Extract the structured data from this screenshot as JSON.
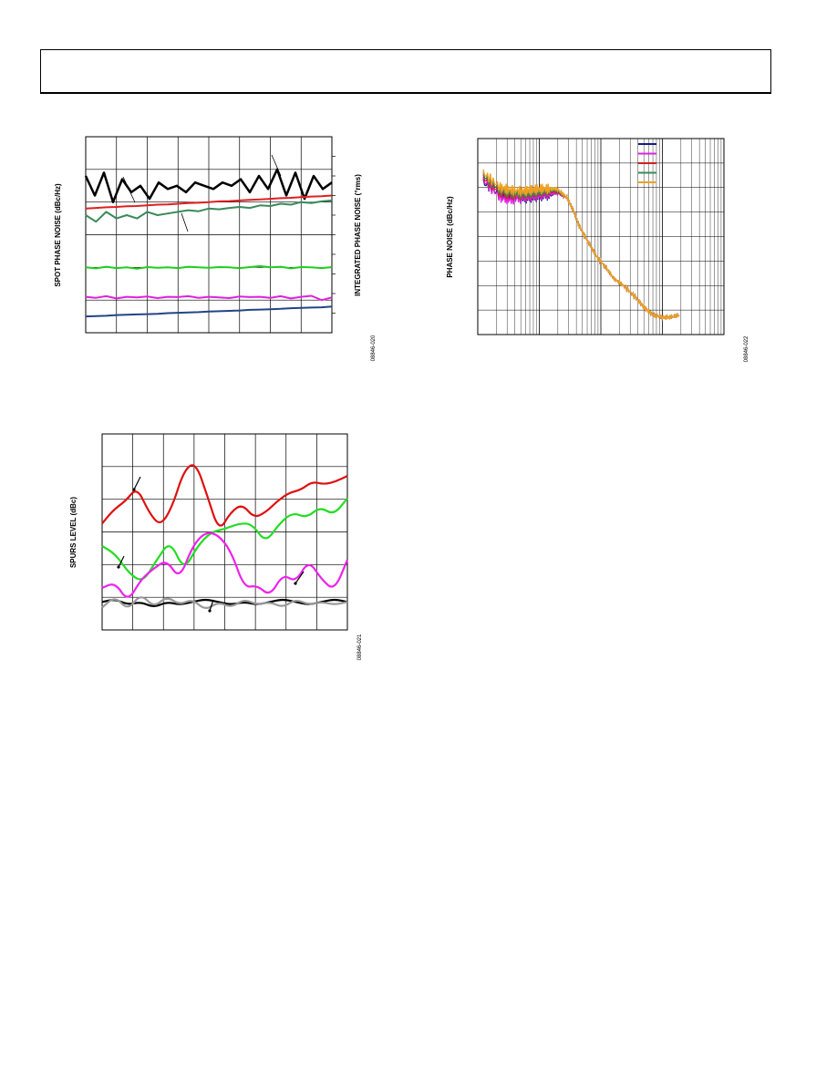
{
  "header": {},
  "chart_data": [
    {
      "type": "line",
      "ylabel": "SPOT PHASE NOISE (dBc/Hz)",
      "y2label": "INTEGRATED PHASE NOISE (°rms)",
      "figure_code": "08846-020",
      "grid": true,
      "series": [
        {
          "color": "#000000",
          "values": [
            -52,
            -58,
            -51,
            -60,
            -53,
            -57,
            -55,
            -59,
            -54,
            -56,
            -55,
            -57,
            -54,
            -55,
            -56,
            -54,
            -55,
            -53,
            -57,
            -52,
            -56,
            -50,
            -58,
            -51,
            -59,
            -52,
            -56,
            -54
          ]
        },
        {
          "color": "#e02020",
          "values": [
            -62,
            -61.8,
            -61.6,
            -61.5,
            -61.3,
            -61.2,
            -61,
            -60.8,
            -60.7,
            -60.5,
            -60.3,
            -60.2,
            -60,
            -59.8,
            -59.7,
            -59.5,
            -59.3,
            -59.2,
            -59,
            -58.8,
            -58.7,
            -58.5,
            -58.3,
            -58.2,
            -58
          ]
        },
        {
          "color": "#3a8a5a",
          "values": [
            -64,
            -66,
            -63,
            -65,
            -64,
            -65,
            -63,
            -64,
            -63.5,
            -63,
            -62.5,
            -62.8,
            -62,
            -62.2,
            -61.8,
            -61.5,
            -61.8,
            -61,
            -61.2,
            -60.5,
            -60.8,
            -60,
            -60.3,
            -59.8,
            -59.5
          ]
        },
        {
          "color": "#22cc22",
          "values": [
            -80,
            -80.3,
            -79.8,
            -80.2,
            -80,
            -80.4,
            -79.9,
            -80.1,
            -80,
            -80.2,
            -79.8,
            -80,
            -80.1,
            -79.9,
            -80,
            -80.2,
            -79.9,
            -79.6,
            -80,
            -79.8,
            -80.3,
            -79.9,
            -80,
            -80.2,
            -79.9
          ]
        },
        {
          "color": "#dd22dd",
          "values": [
            -89,
            -89.3,
            -88.8,
            -89.5,
            -89,
            -89.2,
            -88.9,
            -89.4,
            -89,
            -89.1,
            -88.8,
            -89.3,
            -89,
            -89.2,
            -89.4,
            -88.9,
            -89.1,
            -89,
            -89.3,
            -88.8,
            -89.5,
            -89,
            -88.7,
            -90,
            -89.2
          ]
        },
        {
          "color": "#224488",
          "values": [
            -95,
            -94.9,
            -94.8,
            -94.6,
            -94.5,
            -94.4,
            -94.3,
            -94.2,
            -94,
            -93.9,
            -93.8,
            -93.7,
            -93.5,
            -93.4,
            -93.3,
            -93.2,
            -93,
            -92.9,
            -92.8,
            -92.7,
            -92.5,
            -92.4,
            -92.3,
            -92.2,
            -92
          ]
        }
      ]
    },
    {
      "type": "line",
      "ylabel": "PHASE NOISE (dBc/Hz)",
      "figure_code": "08846-022",
      "x_scale": "log",
      "grid": true,
      "legend_position": "top-right",
      "legend_colors": [
        "#1a1a7a",
        "#e020e0",
        "#d02020",
        "#3a8a5a",
        "#f0a020"
      ],
      "series": [
        {
          "color": "#1a1a7a",
          "x": [
            1,
            2,
            3,
            5,
            7,
            10,
            15,
            20,
            30,
            40,
            50,
            70,
            100,
            150,
            200,
            300,
            500,
            700,
            1000,
            1500,
            2000,
            3000
          ],
          "values": [
            -98,
            -103,
            -104,
            -104.5,
            -104,
            -103.5,
            -103,
            -102,
            -104,
            -110,
            -116,
            -122,
            -128,
            -133,
            -137,
            -140,
            -145,
            -149,
            -152,
            -153,
            -153,
            -152
          ]
        },
        {
          "color": "#e020e0",
          "x": [
            1,
            2,
            3,
            5,
            7,
            10,
            15,
            20,
            30,
            40,
            50,
            70,
            100,
            150,
            200,
            300,
            500,
            700,
            1000,
            1500,
            2000,
            3000
          ],
          "values": [
            -97,
            -104,
            -105,
            -104,
            -103.5,
            -103,
            -102.5,
            -102,
            -104,
            -110,
            -116,
            -122,
            -128,
            -133,
            -137,
            -140,
            -145,
            -149,
            -152,
            -153,
            -153,
            -152
          ]
        },
        {
          "color": "#d02020",
          "x": [
            1,
            2,
            3,
            5,
            7,
            10,
            15,
            20,
            30,
            40,
            50,
            70,
            100,
            150,
            200,
            300,
            500,
            700,
            1000,
            1500,
            2000,
            3000
          ],
          "values": [
            -96,
            -102,
            -103,
            -103,
            -102.5,
            -102,
            -101.5,
            -101.5,
            -104,
            -110,
            -116,
            -122,
            -128,
            -133,
            -137,
            -140,
            -145,
            -149,
            -152,
            -153,
            -153,
            -152
          ]
        },
        {
          "color": "#3a8a5a",
          "x": [
            1,
            2,
            3,
            5,
            7,
            10,
            15,
            20,
            30,
            40,
            50,
            70,
            100,
            150,
            200,
            300,
            500,
            700,
            1000,
            1500,
            2000,
            3000
          ],
          "values": [
            -95,
            -101,
            -102,
            -102.5,
            -102,
            -101.5,
            -101,
            -101,
            -104,
            -110,
            -116,
            -122,
            -128,
            -133,
            -137,
            -140,
            -145,
            -149,
            -152,
            -153,
            -153,
            -152
          ]
        },
        {
          "color": "#f0a020",
          "x": [
            1,
            2,
            3,
            5,
            7,
            10,
            15,
            20,
            30,
            40,
            50,
            70,
            100,
            150,
            200,
            300,
            500,
            700,
            1000,
            1500,
            2000,
            3000
          ],
          "values": [
            -94,
            -100,
            -101,
            -101.5,
            -101,
            -100.5,
            -100.5,
            -100.5,
            -104,
            -110,
            -116,
            -122,
            -128,
            -133,
            -137,
            -140,
            -145,
            -149,
            -152,
            -153,
            -153,
            -152
          ]
        }
      ]
    },
    {
      "type": "line",
      "ylabel": "SPURS LEVEL (dBc)",
      "figure_code": "08846-021",
      "grid": true,
      "series": [
        {
          "color": "#dd1111",
          "values": [
            -52,
            -47,
            -44,
            -39,
            -48,
            -53,
            -46,
            -33,
            -30,
            -42,
            -55,
            -48,
            -45,
            -50,
            -48,
            -44,
            -41,
            -40,
            -37,
            -38,
            -37,
            -35
          ]
        },
        {
          "color": "#22dd22",
          "values": [
            -60,
            -63,
            -70,
            -73,
            -65,
            -58,
            -69,
            -60,
            -55,
            -54,
            -52,
            -52,
            -59,
            -52,
            -48,
            -50,
            -46,
            -49,
            -43
          ]
        },
        {
          "color": "#ee22ee",
          "values": [
            -75,
            -73,
            -80,
            -72,
            -68,
            -65,
            -72,
            -60,
            -55,
            -56,
            -62,
            -75,
            -74,
            -78,
            -70,
            -73,
            -65,
            -72,
            -76,
            -65
          ]
        },
        {
          "color": "#000000",
          "values": [
            -80,
            -79,
            -81,
            -80,
            -82,
            -80,
            -81,
            -80,
            -79,
            -80,
            -81,
            -80,
            -81,
            -80,
            -79,
            -80,
            -81,
            -80,
            -79,
            -80
          ]
        },
        {
          "color": "#999999",
          "values": [
            -82,
            -78,
            -83,
            -77,
            -82,
            -78,
            -81,
            -79,
            -83,
            -80,
            -82,
            -79,
            -81,
            -80,
            -82,
            -79,
            -81,
            -80,
            -81,
            -80
          ]
        }
      ]
    }
  ]
}
